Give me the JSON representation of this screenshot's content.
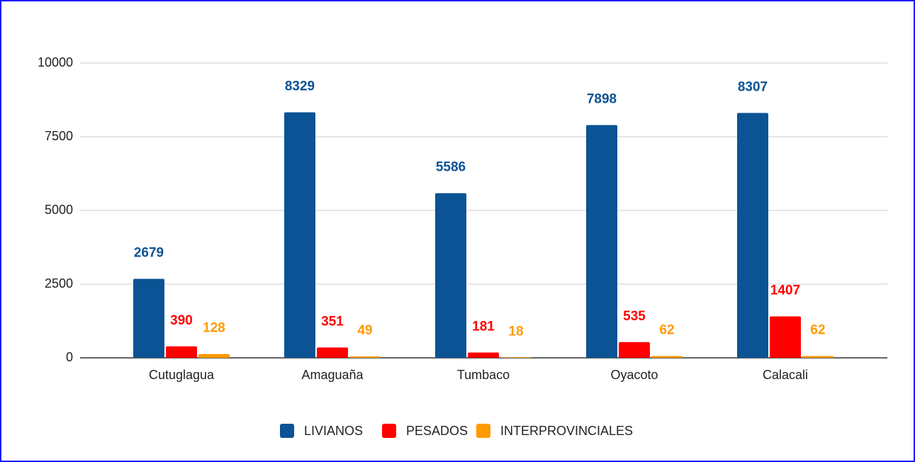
{
  "chart_data": {
    "type": "bar",
    "categories": [
      "Cutuglagua",
      "Amaguaña",
      "Tumbaco",
      "Oyacoto",
      "Calacali"
    ],
    "series": [
      {
        "name": "LIVIANOS",
        "color": "#0b5394",
        "values": [
          2679,
          8329,
          5586,
          7898,
          8307
        ]
      },
      {
        "name": "PESADOS",
        "color": "#ff0000",
        "values": [
          390,
          351,
          181,
          535,
          1407
        ]
      },
      {
        "name": "INTERPROVINCIALES",
        "color": "#ff9900",
        "values": [
          128,
          49,
          18,
          62,
          62
        ]
      }
    ],
    "ylim": [
      0,
      10000
    ],
    "yticks": [
      0,
      2500,
      5000,
      7500,
      10000
    ],
    "grid": true,
    "legend": "bottom"
  }
}
